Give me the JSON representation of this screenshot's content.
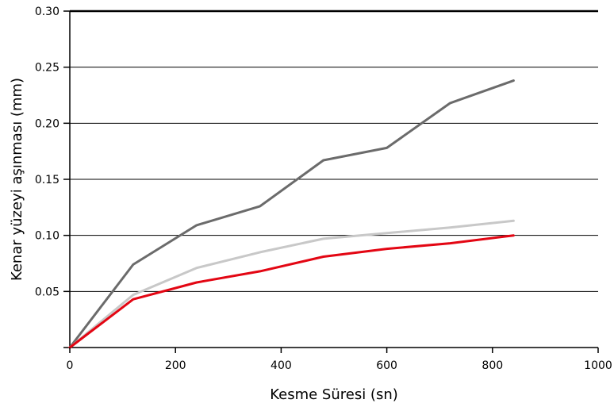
{
  "chart_data": {
    "type": "line",
    "title": "",
    "xlabel": "Kesme Süresi (sn)",
    "ylabel": "Kenar yüzeyi aşınması (mm)",
    "xlim": [
      0,
      1000
    ],
    "ylim": [
      0,
      0.3
    ],
    "x_ticks": [
      0,
      200,
      400,
      600,
      800,
      1000
    ],
    "y_ticks": [
      0.05,
      0.1,
      0.15,
      0.2,
      0.25,
      0.3
    ],
    "x_tick_labels": [
      "0",
      "200",
      "400",
      "600",
      "800",
      "1000"
    ],
    "y_tick_labels": [
      "0.05",
      "0.10",
      "0.15",
      "0.20",
      "0.25",
      "0.30"
    ],
    "grid": "horizontal",
    "legend": "none",
    "series": [
      {
        "color": "#6b6b6b",
        "x": [
          0,
          120,
          240,
          360,
          480,
          600,
          720,
          840
        ],
        "y": [
          0,
          0.074,
          0.109,
          0.126,
          0.167,
          0.178,
          0.218,
          0.238
        ]
      },
      {
        "color": "#c8c8c8",
        "x": [
          0,
          120,
          240,
          360,
          480,
          600,
          720,
          840
        ],
        "y": [
          0,
          0.047,
          0.071,
          0.085,
          0.097,
          0.102,
          0.107,
          0.113
        ]
      },
      {
        "color": "#e30613",
        "x": [
          0,
          120,
          240,
          360,
          480,
          600,
          720,
          840
        ],
        "y": [
          0,
          0.043,
          0.058,
          0.068,
          0.081,
          0.088,
          0.093,
          0.1
        ]
      }
    ]
  }
}
